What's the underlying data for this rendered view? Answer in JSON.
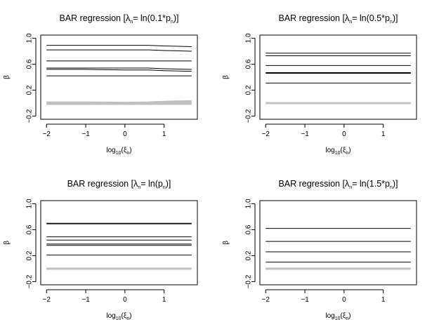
{
  "chart_data": [
    {
      "type": "line",
      "title": "BAR regression [λn= ln(0.1*pn)]",
      "title_parts": {
        "head": "BAR regression [λ",
        "sub1": "n",
        "mid": "= ln(0.1*p",
        "sub2": "n",
        "tail": ")]"
      },
      "xlabel_parts": {
        "base": "log",
        "sub10": "10",
        "open": "(ξ",
        "subn": "n",
        "close": ")"
      },
      "ylabel": "β",
      "xlim": [
        -2,
        1.7
      ],
      "ylim": [
        -0.2,
        1.0
      ],
      "xticks": [
        -2,
        -1,
        0,
        1
      ],
      "xtick_labels": [
        "−2",
        "−1",
        "0",
        "1"
      ],
      "yticks": [
        -0.2,
        0.2,
        0.6,
        1.0
      ],
      "ytick_labels": [
        "−0.2",
        "0.2",
        "0.6",
        "1.0"
      ],
      "x": [
        -2,
        -1,
        0,
        0.6,
        1,
        1.7
      ],
      "series": [
        {
          "color": "#000000",
          "values": [
            0.89,
            0.89,
            0.89,
            0.89,
            0.88,
            0.87
          ]
        },
        {
          "color": "#000000",
          "values": [
            0.82,
            0.82,
            0.82,
            0.82,
            0.81,
            0.8
          ]
        },
        {
          "color": "#000000",
          "values": [
            0.65,
            0.65,
            0.65,
            0.65,
            0.65,
            0.65
          ]
        },
        {
          "color": "#000000",
          "values": [
            0.54,
            0.54,
            0.54,
            0.54,
            0.53,
            0.52
          ]
        },
        {
          "color": "#000000",
          "values": [
            0.52,
            0.52,
            0.51,
            0.51,
            0.5,
            0.49
          ]
        },
        {
          "color": "#000000",
          "values": [
            0.42,
            0.42,
            0.42,
            0.42,
            0.42,
            0.42
          ]
        },
        {
          "color": "#c0c0c0",
          "values": [
            0.01,
            0.01,
            0.005,
            0.01,
            0.02,
            0.03
          ]
        },
        {
          "color": "#c0c0c0",
          "values": [
            0.0,
            0.0,
            -0.005,
            0.0,
            0.0,
            0.0
          ]
        },
        {
          "color": "#c0c0c0",
          "values": [
            -0.01,
            -0.01,
            -0.01,
            -0.01,
            -0.01,
            -0.01
          ]
        }
      ]
    },
    {
      "type": "line",
      "title": "BAR regression [λn= ln(0.5*pn)]",
      "title_parts": {
        "head": "BAR regression [λ",
        "sub1": "n",
        "mid": "= ln(0.5*p",
        "sub2": "n",
        "tail": ")]"
      },
      "xlabel_parts": {
        "base": "log",
        "sub10": "10",
        "open": "(ξ",
        "subn": "n",
        "close": ")"
      },
      "ylabel": "β",
      "xlim": [
        -2,
        1.7
      ],
      "ylim": [
        -0.2,
        1.0
      ],
      "xticks": [
        -2,
        -1,
        0,
        1
      ],
      "xtick_labels": [
        "−2",
        "−1",
        "0",
        "1"
      ],
      "yticks": [
        -0.2,
        0.2,
        0.6,
        1.0
      ],
      "ytick_labels": [
        "−0.2",
        "0.2",
        "0.6",
        "1.0"
      ],
      "x": [
        -2,
        1.7
      ],
      "series": [
        {
          "color": "#000000",
          "values": [
            0.77,
            0.77
          ]
        },
        {
          "color": "#000000",
          "values": [
            0.73,
            0.73
          ]
        },
        {
          "color": "#000000",
          "values": [
            0.58,
            0.58
          ]
        },
        {
          "color": "#000000",
          "values": [
            0.47,
            0.47
          ]
        },
        {
          "color": "#000000",
          "values": [
            0.46,
            0.46
          ]
        },
        {
          "color": "#000000",
          "values": [
            0.31,
            0.31
          ]
        },
        {
          "color": "#c0c0c0",
          "values": [
            0.0,
            0.0
          ]
        }
      ]
    },
    {
      "type": "line",
      "title": "BAR regression [λn= ln(pn)]",
      "title_parts": {
        "head": "BAR regression [λ",
        "sub1": "n",
        "mid": "= ln(p",
        "sub2": "n",
        "tail": ")]"
      },
      "xlabel_parts": {
        "base": "log",
        "sub10": "10",
        "open": "(ξ",
        "subn": "n",
        "close": ")"
      },
      "ylabel": "β",
      "xlim": [
        -2,
        1.7
      ],
      "ylim": [
        -0.2,
        1.0
      ],
      "xticks": [
        -2,
        -1,
        0,
        1
      ],
      "xtick_labels": [
        "−2",
        "−1",
        "0",
        "1"
      ],
      "yticks": [
        -0.2,
        0.2,
        0.6,
        1.0
      ],
      "ytick_labels": [
        "−0.2",
        "0.2",
        "0.6",
        "1.0"
      ],
      "x": [
        -2,
        1.7
      ],
      "series": [
        {
          "color": "#000000",
          "values": [
            0.7,
            0.7
          ]
        },
        {
          "color": "#000000",
          "values": [
            0.69,
            0.69
          ]
        },
        {
          "color": "#000000",
          "values": [
            0.49,
            0.49
          ]
        },
        {
          "color": "#000000",
          "values": [
            0.44,
            0.44
          ]
        },
        {
          "color": "#000000",
          "values": [
            0.38,
            0.38
          ]
        },
        {
          "color": "#000000",
          "values": [
            0.36,
            0.36
          ]
        },
        {
          "color": "#000000",
          "values": [
            0.21,
            0.21
          ]
        },
        {
          "color": "#c0c0c0",
          "values": [
            0.0,
            0.0
          ]
        }
      ]
    },
    {
      "type": "line",
      "title": "BAR regression [λn= ln(1.5*pn)]",
      "title_parts": {
        "head": "BAR regression [λ",
        "sub1": "n",
        "mid": "= ln(1.5*p",
        "sub2": "n",
        "tail": ")]"
      },
      "xlabel_parts": {
        "base": "log",
        "sub10": "10",
        "open": "(ξ",
        "subn": "n",
        "close": ")"
      },
      "ylabel": "β",
      "xlim": [
        -2,
        1.7
      ],
      "ylim": [
        -0.2,
        1.0
      ],
      "xticks": [
        -2,
        -1,
        0,
        1
      ],
      "xtick_labels": [
        "−2",
        "−1",
        "0",
        "1"
      ],
      "yticks": [
        -0.2,
        0.2,
        0.6,
        1.0
      ],
      "ytick_labels": [
        "−0.2",
        "0.2",
        "0.6",
        "1.0"
      ],
      "x": [
        -2,
        1.7
      ],
      "series": [
        {
          "color": "#000000",
          "values": [
            0.62,
            0.62
          ]
        },
        {
          "color": "#000000",
          "values": [
            0.42,
            0.42
          ]
        },
        {
          "color": "#000000",
          "values": [
            0.26,
            0.26
          ]
        },
        {
          "color": "#000000",
          "values": [
            0.1,
            0.1
          ]
        },
        {
          "color": "#c0c0c0",
          "values": [
            0.0,
            0.0
          ]
        }
      ]
    }
  ]
}
